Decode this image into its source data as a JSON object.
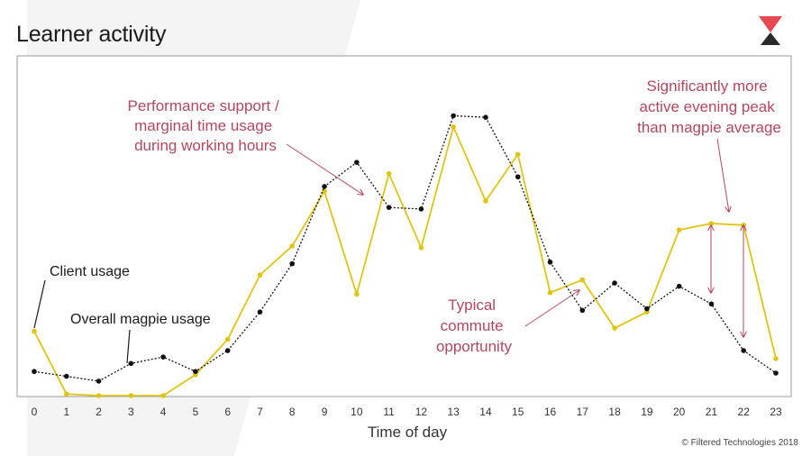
{
  "title": "Learner activity",
  "copyright": "© Filtered Technologies 2018",
  "colors": {
    "client": "#e0c414",
    "overall": "#111111",
    "annotation": "#b2475e",
    "logo_red": "#e8484f",
    "logo_dark": "#2a2a2a"
  },
  "annotations": {
    "client_usage": "Client usage",
    "overall_usage": "Overall magpie usage",
    "performance": [
      "Performance support /",
      "marginal time usage",
      "during working hours"
    ],
    "evening": [
      "Significantly more",
      "active evening peak",
      "than magpie average"
    ],
    "commute": [
      "Typical",
      "commute",
      "opportunity"
    ]
  },
  "chart_data": {
    "type": "line",
    "xlabel": "Time of day",
    "ylabel": "",
    "x": [
      0,
      1,
      2,
      3,
      4,
      5,
      6,
      7,
      8,
      9,
      10,
      11,
      12,
      13,
      14,
      15,
      16,
      17,
      18,
      19,
      20,
      21,
      22,
      23
    ],
    "xlim": [
      0,
      23
    ],
    "ylim": [
      0,
      100
    ],
    "grid": false,
    "series": [
      {
        "name": "Client usage",
        "style": "solid",
        "values": [
          20,
          0.5,
          0,
          0,
          0,
          6.5,
          17.5,
          37.5,
          46.5,
          63.5,
          31.5,
          69,
          46,
          83.5,
          60.5,
          75,
          32,
          36,
          21,
          26,
          51.5,
          53.5,
          53,
          11.5
        ]
      },
      {
        "name": "Overall magpie usage",
        "style": "dotted",
        "values": [
          7.5,
          6,
          4.5,
          10,
          12,
          7.5,
          14,
          26,
          41,
          65,
          72.5,
          58.5,
          58,
          87,
          86.5,
          68,
          41.5,
          26.5,
          35,
          27,
          34,
          28.5,
          14,
          7
        ]
      }
    ]
  }
}
